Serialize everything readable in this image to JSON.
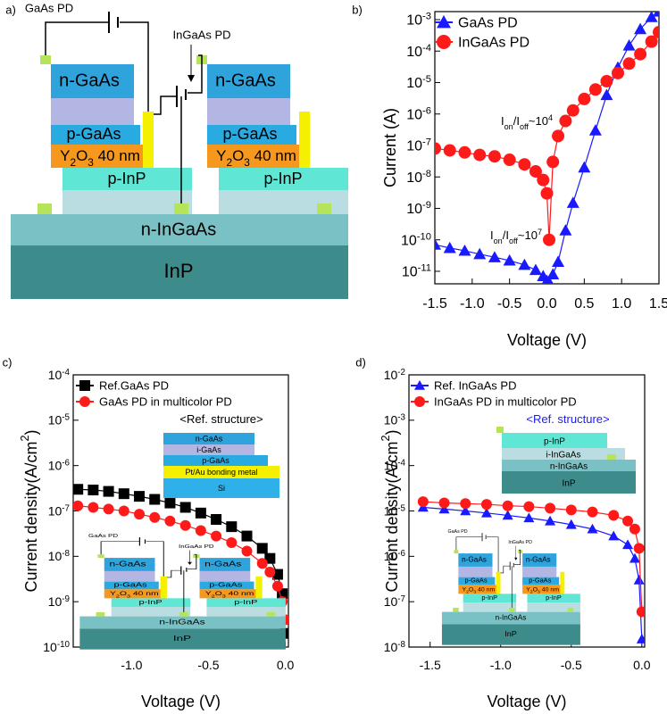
{
  "diagram": {
    "label": "a)",
    "title": "GaAs PD",
    "subtitle": "InGaAs PD",
    "layers": [
      "n-GaAs",
      "p-GaAs",
      "Y_{2}O_{3} 40 nm",
      "p-InP",
      "n-InGaAs",
      "InP"
    ]
  },
  "insets": [
    {
      "title": "<Ref. structure>",
      "layers": [
        "n-GaAs",
        "i-GaAs",
        "p-GaAs",
        "Pt/Au bonding metal",
        "Si"
      ]
    },
    {
      "title": "<Ref. structure>",
      "layers": [
        "p-InP",
        "i-InGaAs",
        "n-InGaAs",
        "InP"
      ]
    }
  ],
  "chart_data": [
    {
      "type": "line",
      "label": "b)",
      "xlabel": "Voltage (V)",
      "ylabel": "Current (A)",
      "yscale": "log",
      "legend": "upper left",
      "annotations": [
        "I_{on}/I_{off}~10^{4}",
        "I_{on}/I_{off}~10^{7}"
      ],
      "xlim": [
        -1.5,
        1.5
      ],
      "ylim": [
        4e-12,
        0.0018
      ],
      "xticks": [
        -1.5,
        {
          "value": -1.0,
          "label": "-1.0"
        },
        -0.5,
        {
          "value": 0.0,
          "label": "0.0"
        },
        0.5,
        {
          "value": 1.0,
          "label": "1.0"
        },
        1.5
      ],
      "yticks": [
        {
          "value": 1e-11,
          "label": "10^{-11}"
        },
        {
          "value": 1e-10,
          "label": "10^{-10}"
        },
        {
          "value": 1e-09,
          "label": "10^{-9}"
        },
        {
          "value": 1e-08,
          "label": "10^{-8}"
        },
        {
          "value": 1e-07,
          "label": "10^{-7}"
        },
        {
          "value": 1e-06,
          "label": "10^{-6}"
        },
        {
          "value": 1e-05,
          "label": "10^{-5}"
        },
        {
          "value": 0.0001,
          "label": "10^{-4}"
        },
        {
          "value": 0.001,
          "label": "10^{-3}"
        }
      ],
      "x": [
        -1.5,
        -1.3,
        -1.1,
        -0.9,
        -0.7,
        -0.5,
        -0.3,
        -0.15,
        -0.05,
        0,
        0.03,
        0.08,
        0.15,
        0.25,
        0.35,
        0.5,
        0.65,
        0.8,
        0.95,
        1.1,
        1.25,
        1.4,
        1.5
      ],
      "series": [
        {
          "name": "GaAs PD",
          "color": "#1a1aff",
          "marker": "triangle",
          "values": [
            7e-11,
            5.5e-11,
            4.5e-11,
            3.5e-11,
            2.8e-11,
            2.2e-11,
            1.6e-11,
            1.1e-11,
            7e-12,
            5e-12,
            4.5e-12,
            8e-12,
            2e-11,
            2e-10,
            1.5e-09,
            2e-08,
            3e-07,
            4e-06,
            3e-05,
            0.00015,
            0.0005,
            0.0012,
            0.0018
          ]
        },
        {
          "name": "InGaAs PD",
          "color": "#ff1a1a",
          "marker": "circle",
          "values": [
            8e-08,
            7e-08,
            6e-08,
            5e-08,
            4.5e-08,
            3.5e-08,
            2.5e-08,
            1.5e-08,
            8e-09,
            3e-09,
            1e-10,
            3e-08,
            2e-07,
            6e-07,
            1.3e-06,
            3e-06,
            6e-06,
            1.1e-05,
            2e-05,
            4e-05,
            8e-05,
            0.0002,
            0.0004
          ]
        }
      ]
    },
    {
      "type": "line",
      "label": "c)",
      "xlabel": "Voltage (V)",
      "ylabel": "Current density(A/cm^{2})",
      "yscale": "log",
      "legend": "upper left",
      "xlim": [
        -1.38,
        0.02
      ],
      "ylim": [
        1e-10,
        0.0001
      ],
      "xticks": [
        {
          "value": -1.0,
          "label": "-1.0"
        },
        -0.5,
        {
          "value": 0.0,
          "label": "0.0"
        }
      ],
      "yticks": [
        {
          "value": 1e-10,
          "label": "10^{-10}"
        },
        {
          "value": 1e-09,
          "label": "10^{-9}"
        },
        {
          "value": 1e-08,
          "label": "10^{-8}"
        },
        {
          "value": 1e-07,
          "label": "10^{-7}"
        },
        {
          "value": 1e-06,
          "label": "10^{-6}"
        },
        {
          "value": 1e-05,
          "label": "10^{-5}"
        },
        {
          "value": 0.0001,
          "label": "10^{-4}"
        }
      ],
      "x": [
        -1.35,
        -1.25,
        -1.15,
        -1.05,
        -0.95,
        -0.85,
        -0.75,
        -0.65,
        -0.55,
        -0.45,
        -0.35,
        -0.25,
        -0.15,
        -0.1,
        -0.05,
        -0.02,
        0
      ],
      "series": [
        {
          "name": "Ref.GaAs PD",
          "color": "#000000",
          "marker": "square",
          "values": [
            3e-07,
            2.9e-07,
            2.7e-07,
            2.4e-07,
            2.1e-07,
            1.8e-07,
            1.5e-07,
            1.2e-07,
            9e-08,
            6.5e-08,
            4.5e-08,
            2.8e-08,
            1.5e-08,
            9e-09,
            4e-09,
            1.5e-09,
            2e-10
          ]
        },
        {
          "name": "GaAs PD in multicolor PD",
          "color": "#ff1a1a",
          "marker": "circle",
          "values": [
            1.3e-07,
            1.2e-07,
            1.1e-07,
            1e-07,
            8.5e-08,
            7.2e-08,
            6e-08,
            4.8e-08,
            3.7e-08,
            2.8e-08,
            2e-08,
            1.3e-08,
            7e-09,
            4.5e-09,
            2.2e-09,
            1e-09,
            4e-10
          ]
        }
      ]
    },
    {
      "type": "line",
      "label": "d)",
      "xlabel": "Voltage (V)",
      "ylabel": "Current density(A/cm^{2})",
      "yscale": "log",
      "legend": "upper left",
      "xlim": [
        -1.65,
        0.02
      ],
      "ylim": [
        1e-08,
        0.01
      ],
      "xticks": [
        -1.5,
        {
          "value": -1.0,
          "label": "-1.0"
        },
        -0.5,
        {
          "value": 0.0,
          "label": "0.0"
        }
      ],
      "yticks": [
        {
          "value": 1e-08,
          "label": "10^{-8}"
        },
        {
          "value": 1e-07,
          "label": "10^{-7}"
        },
        {
          "value": 1e-06,
          "label": "10^{-6}"
        },
        {
          "value": 1e-05,
          "label": "10^{-5}"
        },
        {
          "value": 0.0001,
          "label": "10^{-4}"
        },
        {
          "value": 0.001,
          "label": "10^{-3}"
        },
        {
          "value": 0.01,
          "label": "10^{-2}"
        }
      ],
      "x": [
        -1.55,
        -1.4,
        -1.25,
        -1.1,
        -0.95,
        -0.8,
        -0.65,
        -0.5,
        -0.35,
        -0.2,
        -0.1,
        -0.05,
        -0.02,
        0
      ],
      "series": [
        {
          "name": "Ref. InGaAs PD",
          "color": "#1a1aff",
          "marker": "triangle",
          "values": [
            1.2e-05,
            1.1e-05,
            1e-05,
            9e-06,
            8e-06,
            7e-06,
            6e-06,
            5e-06,
            4e-06,
            2.8e-06,
            1.8e-06,
            9e-07,
            3e-07,
            1.5e-08
          ]
        },
        {
          "name": "InGaAs PD in multicolor PD",
          "color": "#ff1a1a",
          "marker": "circle",
          "values": [
            1.6e-05,
            1.5e-05,
            1.45e-05,
            1.4e-05,
            1.3e-05,
            1.25e-05,
            1.15e-05,
            1.05e-05,
            9.5e-06,
            8e-06,
            6e-06,
            4e-06,
            1.5e-06,
            6e-08
          ]
        }
      ]
    }
  ]
}
